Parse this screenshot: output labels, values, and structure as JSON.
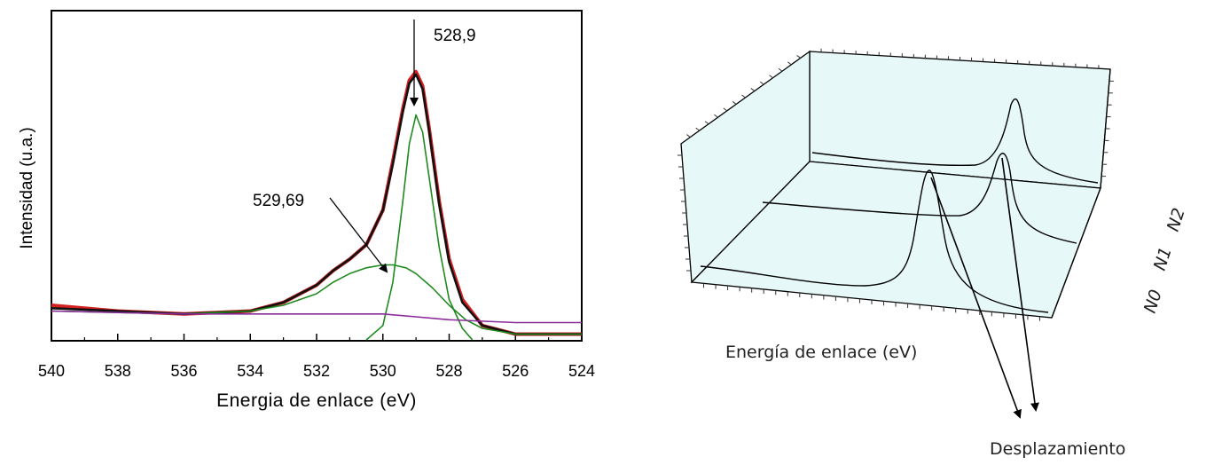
{
  "chart_data": [
    {
      "type": "line",
      "title": "",
      "xlabel": "Energia de enlace (eV)",
      "ylabel": "Intensidad (u.a.)",
      "xlim": [
        540,
        524
      ],
      "ylim": [
        0,
        1
      ],
      "x_reversed": true,
      "x_ticks": [
        "540",
        "538",
        "536",
        "534",
        "532",
        "530",
        "528",
        "526",
        "524"
      ],
      "grid": false,
      "annotations": [
        {
          "text": "528,9",
          "x": 528.9
        },
        {
          "text": "529,69",
          "x": 529.69
        }
      ],
      "series": [
        {
          "color": "#d42020",
          "x": [
            540,
            538,
            536,
            534,
            533,
            532,
            531.5,
            531,
            530.5,
            530,
            529.7,
            529.4,
            529.2,
            529,
            528.8,
            528.6,
            528.3,
            528,
            527.6,
            527,
            526,
            524
          ],
          "values": [
            0.12,
            0.1,
            0.09,
            0.1,
            0.13,
            0.19,
            0.24,
            0.28,
            0.33,
            0.45,
            0.62,
            0.8,
            0.9,
            0.93,
            0.88,
            0.73,
            0.48,
            0.28,
            0.14,
            0.05,
            0.02,
            0.02
          ]
        },
        {
          "color": "#111111",
          "x": [
            540,
            538,
            536,
            534,
            533,
            532,
            531.5,
            531,
            530.5,
            530,
            529.7,
            529.4,
            529.2,
            529,
            528.8,
            528.6,
            528.3,
            528,
            527.6,
            527,
            526,
            524
          ],
          "values": [
            0.11,
            0.1,
            0.09,
            0.1,
            0.13,
            0.19,
            0.24,
            0.28,
            0.33,
            0.45,
            0.61,
            0.79,
            0.89,
            0.92,
            0.87,
            0.72,
            0.47,
            0.27,
            0.13,
            0.05,
            0.02,
            0.02
          ]
        },
        {
          "color": "#1e8a1e",
          "x": [
            540,
            536,
            534,
            533,
            532,
            531.5,
            531,
            530.5,
            530,
            529.69,
            529.3,
            529,
            528.5,
            528,
            527.5,
            527,
            526,
            524
          ],
          "values": [
            0.1,
            0.09,
            0.1,
            0.12,
            0.16,
            0.2,
            0.23,
            0.25,
            0.26,
            0.26,
            0.25,
            0.23,
            0.18,
            0.12,
            0.07,
            0.04,
            0.02,
            0.02
          ]
        },
        {
          "color": "#1e8a1e",
          "x": [
            530.5,
            530,
            529.7,
            529.4,
            529.2,
            529,
            528.8,
            528.6,
            528.3,
            528,
            527.6,
            527.3
          ],
          "values": [
            0.0,
            0.05,
            0.2,
            0.48,
            0.68,
            0.78,
            0.72,
            0.56,
            0.32,
            0.14,
            0.04,
            0.0
          ]
        },
        {
          "color": "#8a2b9a",
          "x": [
            540,
            536,
            532,
            530,
            529,
            528,
            526,
            524
          ],
          "values": [
            0.1,
            0.09,
            0.09,
            0.09,
            0.08,
            0.07,
            0.06,
            0.06
          ]
        }
      ]
    },
    {
      "type": "line",
      "title": "",
      "xlabel": "Energía de enlace (eV)",
      "depth_labels": [
        "N0",
        "N1",
        "N2"
      ],
      "annotations": [
        {
          "text": "Desplazamiento"
        }
      ],
      "panel_color": "#e6f8f8"
    }
  ]
}
